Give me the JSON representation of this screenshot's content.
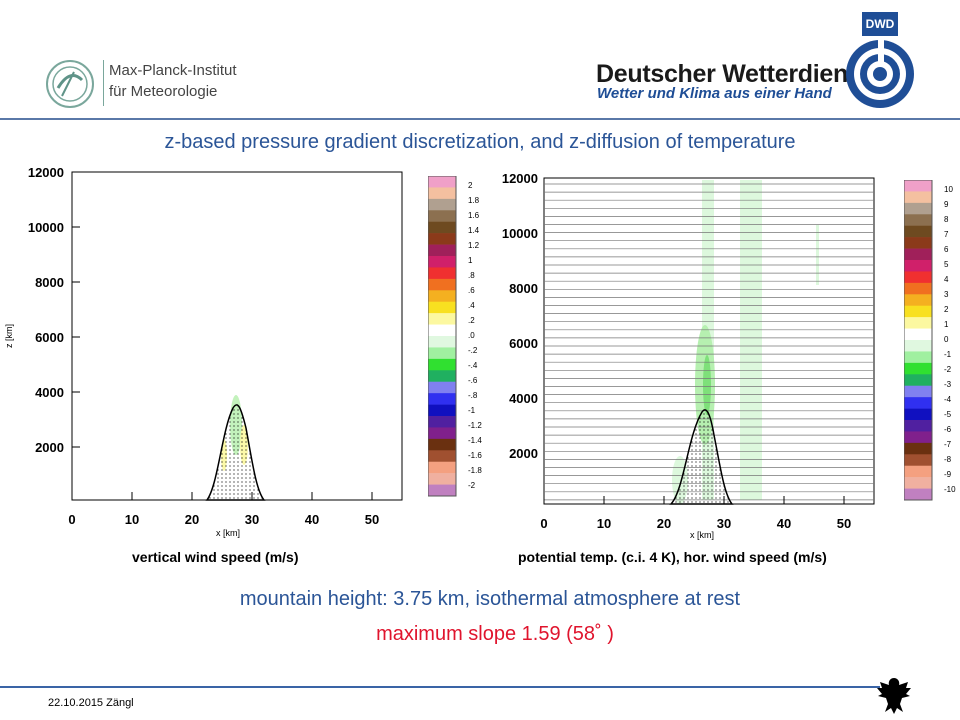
{
  "header": {
    "mpi_name_line1": "Max-Planck-Institut",
    "mpi_name_line2": "für Meteorologie",
    "dwd_badge": "DWD",
    "dwd_title": "Deutscher Wetterdienst",
    "dwd_subtitle": "Wetter und Klima aus einer Hand"
  },
  "slide": {
    "title": "z-based pressure gradient discretization, and z-diffusion of temperature",
    "subtitle": "mountain height: 3.75 km, isothermal atmosphere at rest",
    "slope_note": "maximum slope 1.59 (58˚ )"
  },
  "left_plot": {
    "caption": "vertical wind speed (m/s)",
    "ylabel": "z [km]",
    "xlabel": "x [km]",
    "y_ticks": [
      "12000",
      "10000",
      "8000",
      "6000",
      "4000",
      "2000"
    ],
    "x_ticks": [
      "0",
      "10",
      "20",
      "30",
      "40",
      "50"
    ],
    "colorbar_labels": [
      "2",
      "1.8",
      "1.6",
      "1.4",
      "1.2",
      "1",
      ".8",
      ".6",
      ".4",
      ".2",
      ".0",
      "-.2",
      "-.4",
      "-.6",
      "-.8",
      "-1",
      "-1.2",
      "-1.4",
      "-1.6",
      "-1.8",
      "-2"
    ]
  },
  "right_plot": {
    "caption": "potential temp. (c.i. 4 K), hor. wind speed (m/s)",
    "xlabel": "x [km]",
    "y_ticks": [
      "12000",
      "10000",
      "8000",
      "6000",
      "4000",
      "2000"
    ],
    "x_ticks": [
      "0",
      "10",
      "20",
      "30",
      "40",
      "50"
    ],
    "colorbar_labels": [
      "10",
      "9",
      "8",
      "7",
      "6",
      "5",
      "4",
      "3",
      "2",
      "1",
      "0",
      "-1",
      "-2",
      "-3",
      "-4",
      "-5",
      "-6",
      "-7",
      "-8",
      "-9",
      "-10"
    ]
  },
  "colorbar_colors": [
    "#f0a0c8",
    "#f4c0a0",
    "#b0a090",
    "#8c7050",
    "#6e4a20",
    "#8b3a1a",
    "#a0205a",
    "#d0206a",
    "#f03030",
    "#f07020",
    "#f4b020",
    "#f8e020",
    "#fcf8a0",
    "#ffffff",
    "#e0f8e0",
    "#a0f0a0",
    "#30e030",
    "#20b060",
    "#8080f0",
    "#3030f0",
    "#1010c0",
    "#5020a0",
    "#80208c",
    "#6a3010",
    "#a05030",
    "#f4a080",
    "#f0b0a0",
    "#c080c0"
  ],
  "footer": {
    "date_author": "22.10.2015  Zängl"
  }
}
